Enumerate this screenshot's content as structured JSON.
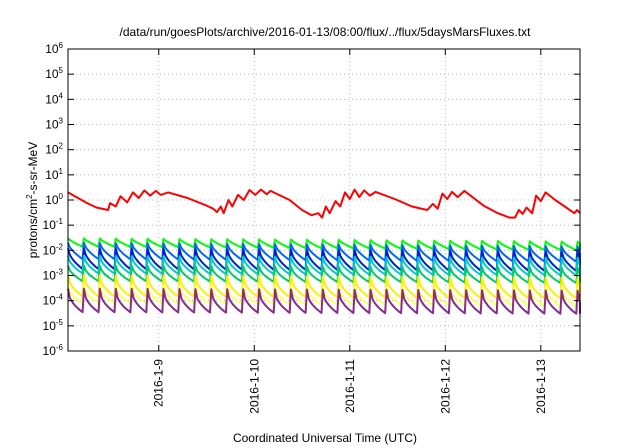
{
  "chart_data": {
    "type": "line",
    "title": "/data/run/goesPlots/archive/2016-01-13/08:00/flux/../flux/5daysMarsFluxes.txt",
    "xlabel": "Coordinated Universal Time (UTC)",
    "ylabel": {
      "pre": "protons/cm",
      "sup": "2",
      "post": "-s-sr-MeV"
    },
    "yscale": "log",
    "ylim_exp": [
      -6,
      6
    ],
    "xlim_days": [
      0,
      5.36
    ],
    "grid": true,
    "legend": "none",
    "xticks": [
      {
        "day": 0.95,
        "label": "2016-1-9"
      },
      {
        "day": 1.95,
        "label": "2016-1-10"
      },
      {
        "day": 2.95,
        "label": "2016-1-11"
      },
      {
        "day": 3.95,
        "label": "2016-1-12"
      },
      {
        "day": 4.95,
        "label": "2016-1-13"
      }
    ],
    "yticks": [
      {
        "exp": -6,
        "base": "10",
        "sup": "-6"
      },
      {
        "exp": -5,
        "base": "10",
        "sup": "-5"
      },
      {
        "exp": -4,
        "base": "10",
        "sup": "-4"
      },
      {
        "exp": -3,
        "base": "10",
        "sup": "-3"
      },
      {
        "exp": -2,
        "base": "10",
        "sup": "-2"
      },
      {
        "exp": -1,
        "base": "10",
        "sup": "-1"
      },
      {
        "exp": 0,
        "base": "10",
        "sup": "0"
      },
      {
        "exp": 1,
        "base": "10",
        "sup": "1"
      },
      {
        "exp": 2,
        "base": "10",
        "sup": "2"
      },
      {
        "exp": 3,
        "base": "10",
        "sup": "3"
      },
      {
        "exp": 4,
        "base": "10",
        "sup": "4"
      },
      {
        "exp": 5,
        "base": "10",
        "sup": "5"
      },
      {
        "exp": 6,
        "base": "10",
        "sup": "6"
      }
    ],
    "series": [
      {
        "color": "#ff0000",
        "sawtooth": false,
        "points": [
          [
            0.0,
            2.0
          ],
          [
            0.2,
            0.75
          ],
          [
            0.3,
            0.5
          ],
          [
            0.42,
            0.4
          ],
          [
            0.44,
            0.75
          ],
          [
            0.5,
            0.55
          ],
          [
            0.55,
            1.4
          ],
          [
            0.62,
            0.8
          ],
          [
            0.68,
            2.0
          ],
          [
            0.74,
            1.2
          ],
          [
            0.8,
            2.4
          ],
          [
            0.86,
            1.5
          ],
          [
            0.92,
            2.3
          ],
          [
            0.97,
            1.6
          ],
          [
            1.05,
            2.0
          ],
          [
            1.25,
            1.2
          ],
          [
            1.45,
            0.6
          ],
          [
            1.52,
            0.45
          ],
          [
            1.56,
            0.33
          ],
          [
            1.6,
            0.55
          ],
          [
            1.63,
            0.3
          ],
          [
            1.68,
            1.0
          ],
          [
            1.72,
            0.55
          ],
          [
            1.78,
            1.6
          ],
          [
            1.84,
            1.0
          ],
          [
            1.9,
            2.5
          ],
          [
            1.96,
            1.6
          ],
          [
            2.02,
            2.6
          ],
          [
            2.08,
            1.7
          ],
          [
            2.12,
            2.3
          ],
          [
            2.32,
            1.0
          ],
          [
            2.45,
            0.4
          ],
          [
            2.55,
            0.25
          ],
          [
            2.62,
            0.3
          ],
          [
            2.66,
            0.2
          ],
          [
            2.7,
            0.55
          ],
          [
            2.74,
            0.3
          ],
          [
            2.8,
            0.9
          ],
          [
            2.85,
            0.55
          ],
          [
            2.9,
            2.0
          ],
          [
            2.95,
            1.1
          ],
          [
            3.0,
            2.6
          ],
          [
            3.05,
            1.3
          ],
          [
            3.1,
            2.4
          ],
          [
            3.16,
            1.5
          ],
          [
            3.22,
            2.1
          ],
          [
            3.42,
            1.1
          ],
          [
            3.6,
            0.55
          ],
          [
            3.76,
            0.4
          ],
          [
            3.82,
            0.7
          ],
          [
            3.87,
            0.45
          ],
          [
            3.92,
            1.8
          ],
          [
            3.97,
            1.1
          ],
          [
            4.02,
            2.1
          ],
          [
            4.08,
            1.3
          ],
          [
            4.15,
            2.3
          ],
          [
            4.35,
            0.6
          ],
          [
            4.5,
            0.3
          ],
          [
            4.62,
            0.2
          ],
          [
            4.68,
            0.2
          ],
          [
            4.72,
            0.4
          ],
          [
            4.76,
            0.28
          ],
          [
            4.8,
            0.5
          ],
          [
            4.86,
            0.3
          ],
          [
            4.9,
            1.5
          ],
          [
            4.95,
            0.9
          ],
          [
            5.0,
            2.0
          ],
          [
            5.1,
            1.0
          ],
          [
            5.2,
            0.55
          ],
          [
            5.3,
            0.3
          ],
          [
            5.33,
            0.4
          ],
          [
            5.36,
            0.3
          ]
        ]
      },
      {
        "color": "#00ff00",
        "sawtooth": true,
        "period": 0.1667,
        "top": [
          0.03,
          0.022
        ],
        "bottom": [
          0.014,
          0.01
        ],
        "shape": 1.3
      },
      {
        "color": "#0066ff",
        "sawtooth": true,
        "period": 0.1667,
        "top": [
          0.02,
          0.014
        ],
        "bottom": [
          0.0045,
          0.0035
        ],
        "shape": 1.6
      },
      {
        "color": "#0022cc",
        "sawtooth": true,
        "period": 0.1667,
        "top": [
          0.012,
          0.009
        ],
        "bottom": [
          0.0018,
          0.0015
        ],
        "shape": 1.8
      },
      {
        "color": "#00cccc",
        "sawtooth": true,
        "period": 0.1667,
        "top": [
          0.006,
          0.005
        ],
        "bottom": [
          0.0012,
          0.001
        ],
        "shape": 1.8
      },
      {
        "color": "#00cc66",
        "sawtooth": true,
        "period": 0.1667,
        "top": [
          0.0025,
          0.002
        ],
        "bottom": [
          0.0006,
          0.0005
        ],
        "shape": 1.8
      },
      {
        "color": "#ffee00",
        "sawtooth": true,
        "period": 0.1667,
        "top": [
          0.001,
          0.0008
        ],
        "bottom": [
          0.00015,
          0.00012
        ],
        "shape": 2.0
      },
      {
        "color": "#ffff66",
        "sawtooth": true,
        "period": 0.1667,
        "top": [
          0.0004,
          0.0003
        ],
        "bottom": [
          8e-05,
          6e-05
        ],
        "shape": 2.0
      },
      {
        "color": "#8a2b8a",
        "sawtooth": true,
        "period": 0.1667,
        "top": [
          0.0003,
          0.00025
        ],
        "bottom": [
          3.5e-05,
          3e-05
        ],
        "shape": 2.2
      }
    ]
  }
}
